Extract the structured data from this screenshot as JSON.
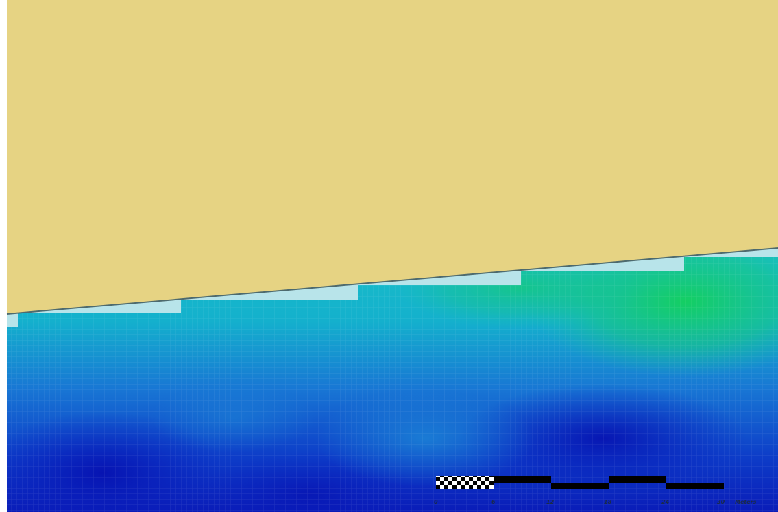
{
  "map": {
    "colors": {
      "land": "#e6d383",
      "shoreline": "#4d6a6e",
      "shallow_strip": "#b8e4ea",
      "water_low": "#0a17b5",
      "water_mid": "#1aa7c8",
      "water_high": "#16c66e"
    }
  },
  "scale_bar": {
    "ticks": [
      "0",
      "6",
      "12",
      "18",
      "24",
      "30"
    ],
    "unit": "Meters",
    "checker_color": "#000000"
  }
}
